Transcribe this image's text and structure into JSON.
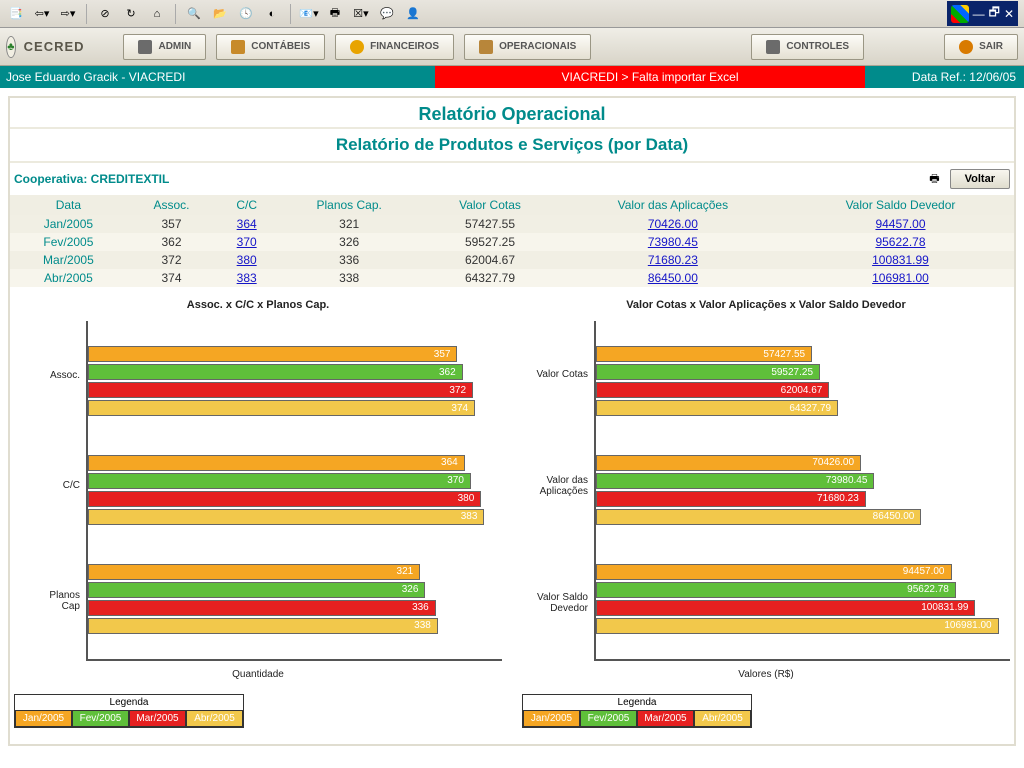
{
  "app": {
    "title": "CECRED",
    "menu": [
      {
        "label": "ADMIN",
        "icon": "#6b6b6b"
      },
      {
        "label": "CONTÁBEIS",
        "icon": "#c78a2a"
      },
      {
        "label": "FINANCEIROS",
        "icon": "#e8a400"
      },
      {
        "label": "OPERACIONAIS",
        "icon": "#b8863a"
      },
      {
        "label": "CONTROLES",
        "icon": "#6b6b6b"
      },
      {
        "label": "SAIR",
        "icon": "#d87a00"
      }
    ]
  },
  "status": {
    "user": "Jose Eduardo Gracik - VIACREDI",
    "alert": "VIACREDI > Falta importar Excel",
    "date_ref": "Data Ref.: 12/06/05"
  },
  "report": {
    "title1": "Relatório Operacional",
    "title2": "Relatório de Produtos e Serviços (por Data)",
    "coop_label": "Cooperativa: CREDITEXTIL",
    "back_label": "Voltar"
  },
  "table": {
    "columns": [
      "Data",
      "Assoc.",
      "C/C",
      "Planos Cap.",
      "Valor Cotas",
      "Valor das Aplicações",
      "Valor Saldo Devedor"
    ],
    "link_cols": [
      2,
      5,
      6
    ],
    "rows": [
      [
        "Jan/2005",
        "357",
        "364",
        "321",
        "57427.55",
        "70426.00",
        "94457.00"
      ],
      [
        "Fev/2005",
        "362",
        "370",
        "326",
        "59527.25",
        "73980.45",
        "95622.78"
      ],
      [
        "Mar/2005",
        "372",
        "380",
        "336",
        "62004.67",
        "71680.23",
        "100831.99"
      ],
      [
        "Abr/2005",
        "374",
        "383",
        "338",
        "64327.79",
        "86450.00",
        "106981.00"
      ]
    ]
  },
  "colors": {
    "months": [
      "#f5a623",
      "#5fbf3a",
      "#e62020",
      "#f2c84b"
    ],
    "month_labels": [
      "Jan/2005",
      "Fev/2005",
      "Mar/2005",
      "Abr/2005"
    ]
  },
  "chart_left": {
    "title": "Assoc. x C/C x Planos Cap.",
    "xlabel": "Quantidade",
    "xlim": 400,
    "groups": [
      {
        "label": "Assoc.",
        "values": [
          357,
          362,
          372,
          374
        ]
      },
      {
        "label": "C/C",
        "values": [
          364,
          370,
          380,
          383
        ]
      },
      {
        "label": "Planos\nCap",
        "values": [
          321,
          326,
          336,
          338
        ]
      }
    ]
  },
  "chart_right": {
    "title": "Valor Cotas x Valor Aplicações x Valor Saldo Devedor",
    "xlabel": "Valores (R$)",
    "xlim": 110000,
    "groups": [
      {
        "label": "Valor Cotas",
        "values": [
          57427.55,
          59527.25,
          62004.67,
          64327.79
        ]
      },
      {
        "label": "Valor das\nAplicações",
        "values": [
          70426.0,
          73980.45,
          71680.23,
          86450.0
        ]
      },
      {
        "label": "Valor Saldo\nDevedor",
        "values": [
          94457.0,
          95622.78,
          100831.99,
          106981.0
        ]
      }
    ]
  },
  "legend_title": "Legenda"
}
